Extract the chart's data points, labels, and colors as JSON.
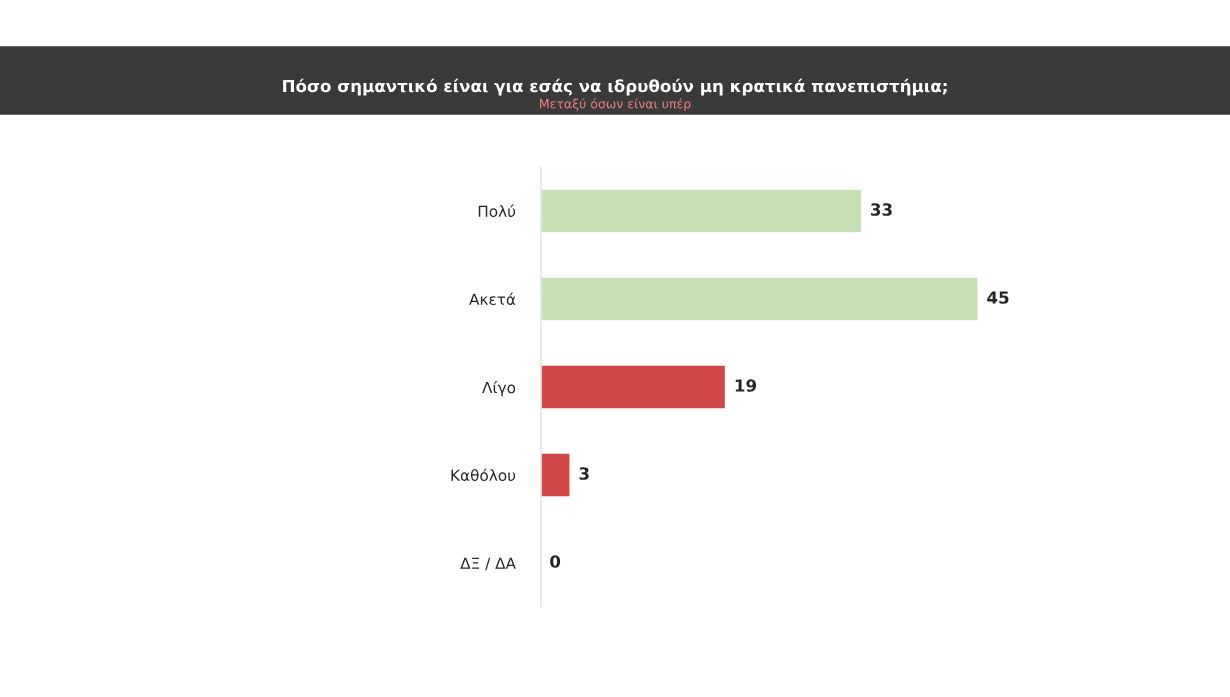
{
  "chart_data": {
    "type": "bar",
    "orientation": "horizontal",
    "title": "Πόσο σημαντικό είναι για εσάς να ιδρυθούν μη κρατικά πανεπιστήμια;",
    "subtitle": "Μεταξύ όσων είναι υπέρ",
    "categories": [
      "Πολύ",
      "Ακετά",
      "Λίγο",
      "Καθόλου",
      "ΔΞ / ΔΑ"
    ],
    "values": [
      33,
      45,
      19,
      3,
      0
    ],
    "colors": [
      "#c5e0b4",
      "#c5e0b4",
      "#d24848",
      "#d24848",
      null
    ],
    "data_labels": true,
    "grid": false,
    "legend": false,
    "tick_labels": "y"
  }
}
